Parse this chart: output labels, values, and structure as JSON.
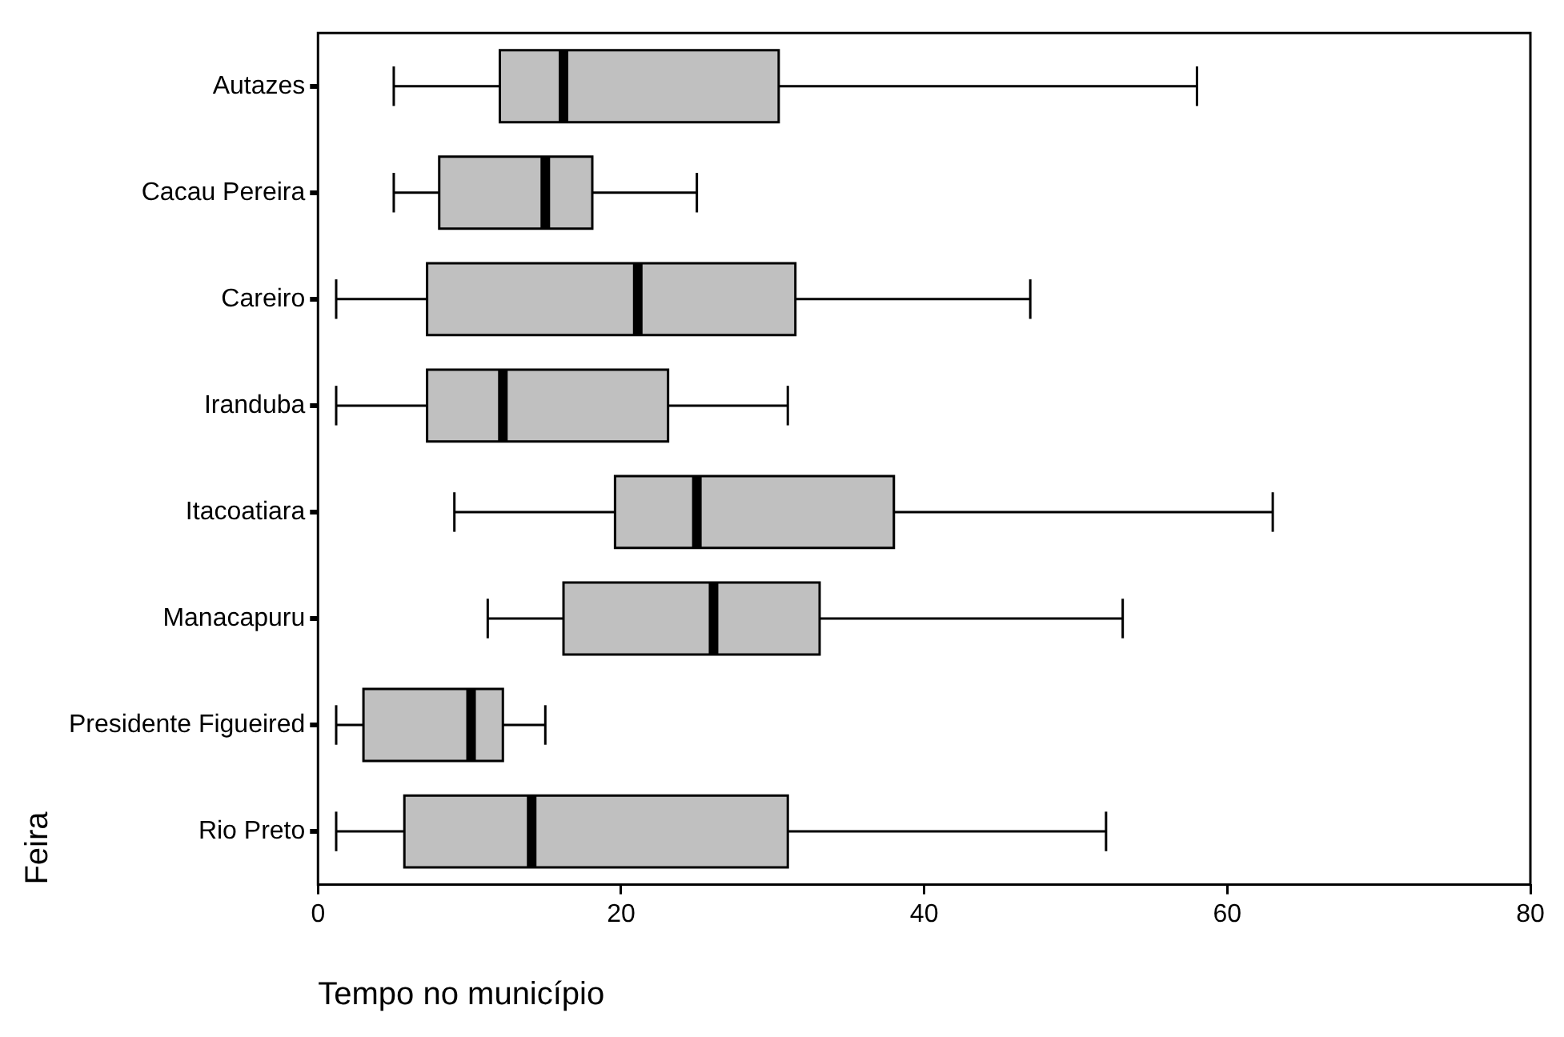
{
  "chart_data": {
    "type": "box",
    "orientation": "horizontal",
    "xlabel": "Tempo no município",
    "ylabel": "Feira",
    "categories": [
      "Autazes",
      "Cacau Pereira",
      "Careiro",
      "Iranduba",
      "Itacoatiara",
      "Manacapuru",
      "Presidente Figueired",
      "Rio Preto"
    ],
    "color": "#c0c0c0",
    "boxes": [
      {
        "low": 5,
        "q1": 12,
        "median": 16.2,
        "q3": 30.4,
        "high": 58
      },
      {
        "low": 5,
        "q1": 8,
        "median": 15,
        "q3": 18.1,
        "high": 25
      },
      {
        "low": 1.2,
        "q1": 7.2,
        "median": 21.1,
        "q3": 31.5,
        "high": 47
      },
      {
        "low": 1.2,
        "q1": 7.2,
        "median": 12.2,
        "q3": 23.1,
        "high": 31
      },
      {
        "low": 9,
        "q1": 19.6,
        "median": 25,
        "q3": 38,
        "high": 63
      },
      {
        "low": 11.2,
        "q1": 16.2,
        "median": 26.1,
        "q3": 33.1,
        "high": 53.1
      },
      {
        "low": 1.2,
        "q1": 3,
        "median": 10.1,
        "q3": 12.2,
        "high": 15
      },
      {
        "low": 1.2,
        "q1": 5.7,
        "median": 14.1,
        "q3": 31,
        "high": 52
      }
    ],
    "xlim": [
      0,
      80
    ],
    "xticks": [
      0,
      20,
      40,
      60,
      80
    ],
    "grid": false,
    "legend": false
  }
}
